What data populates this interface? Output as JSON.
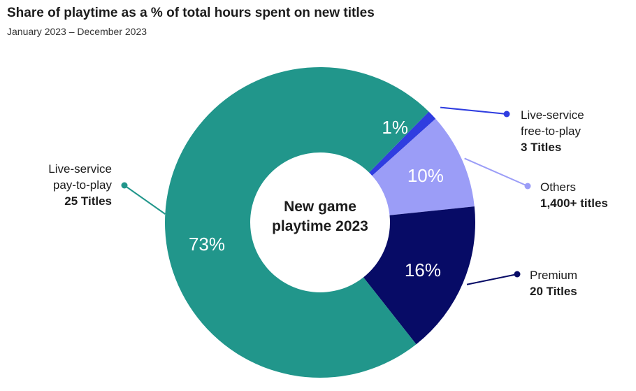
{
  "title": "Share of playtime as a % of total hours spent on new titles",
  "subtitle": "January 2023 – December 2023",
  "chart_data": {
    "type": "pie",
    "variant": "donut",
    "title": "Share of playtime as a % of total hours spent on new titles",
    "subtitle": "January 2023 – December 2023",
    "center_text": [
      "New game",
      "playtime 2023"
    ],
    "slices": [
      {
        "key": "f2p",
        "value": 1,
        "label": "1%",
        "name_lines": [
          "Live-service",
          "free-to-play"
        ],
        "count": "3 Titles",
        "color": "#2f3de0",
        "label_color": "#ffffff"
      },
      {
        "key": "others",
        "value": 10,
        "label": "10%",
        "name_lines": [
          "Others"
        ],
        "count": "1,400+ titles",
        "color": "#9b9df7",
        "label_color": "#ffffff"
      },
      {
        "key": "premium",
        "value": 16,
        "label": "16%",
        "name_lines": [
          "Premium"
        ],
        "count": "20 Titles",
        "color": "#070b66",
        "label_color": "#ffffff"
      },
      {
        "key": "p2p",
        "value": 73,
        "label": "73%",
        "name_lines": [
          "Live-service",
          "pay-to-play"
        ],
        "count": "25 Titles",
        "color": "#21968b",
        "label_color": "#ffffff"
      }
    ]
  }
}
